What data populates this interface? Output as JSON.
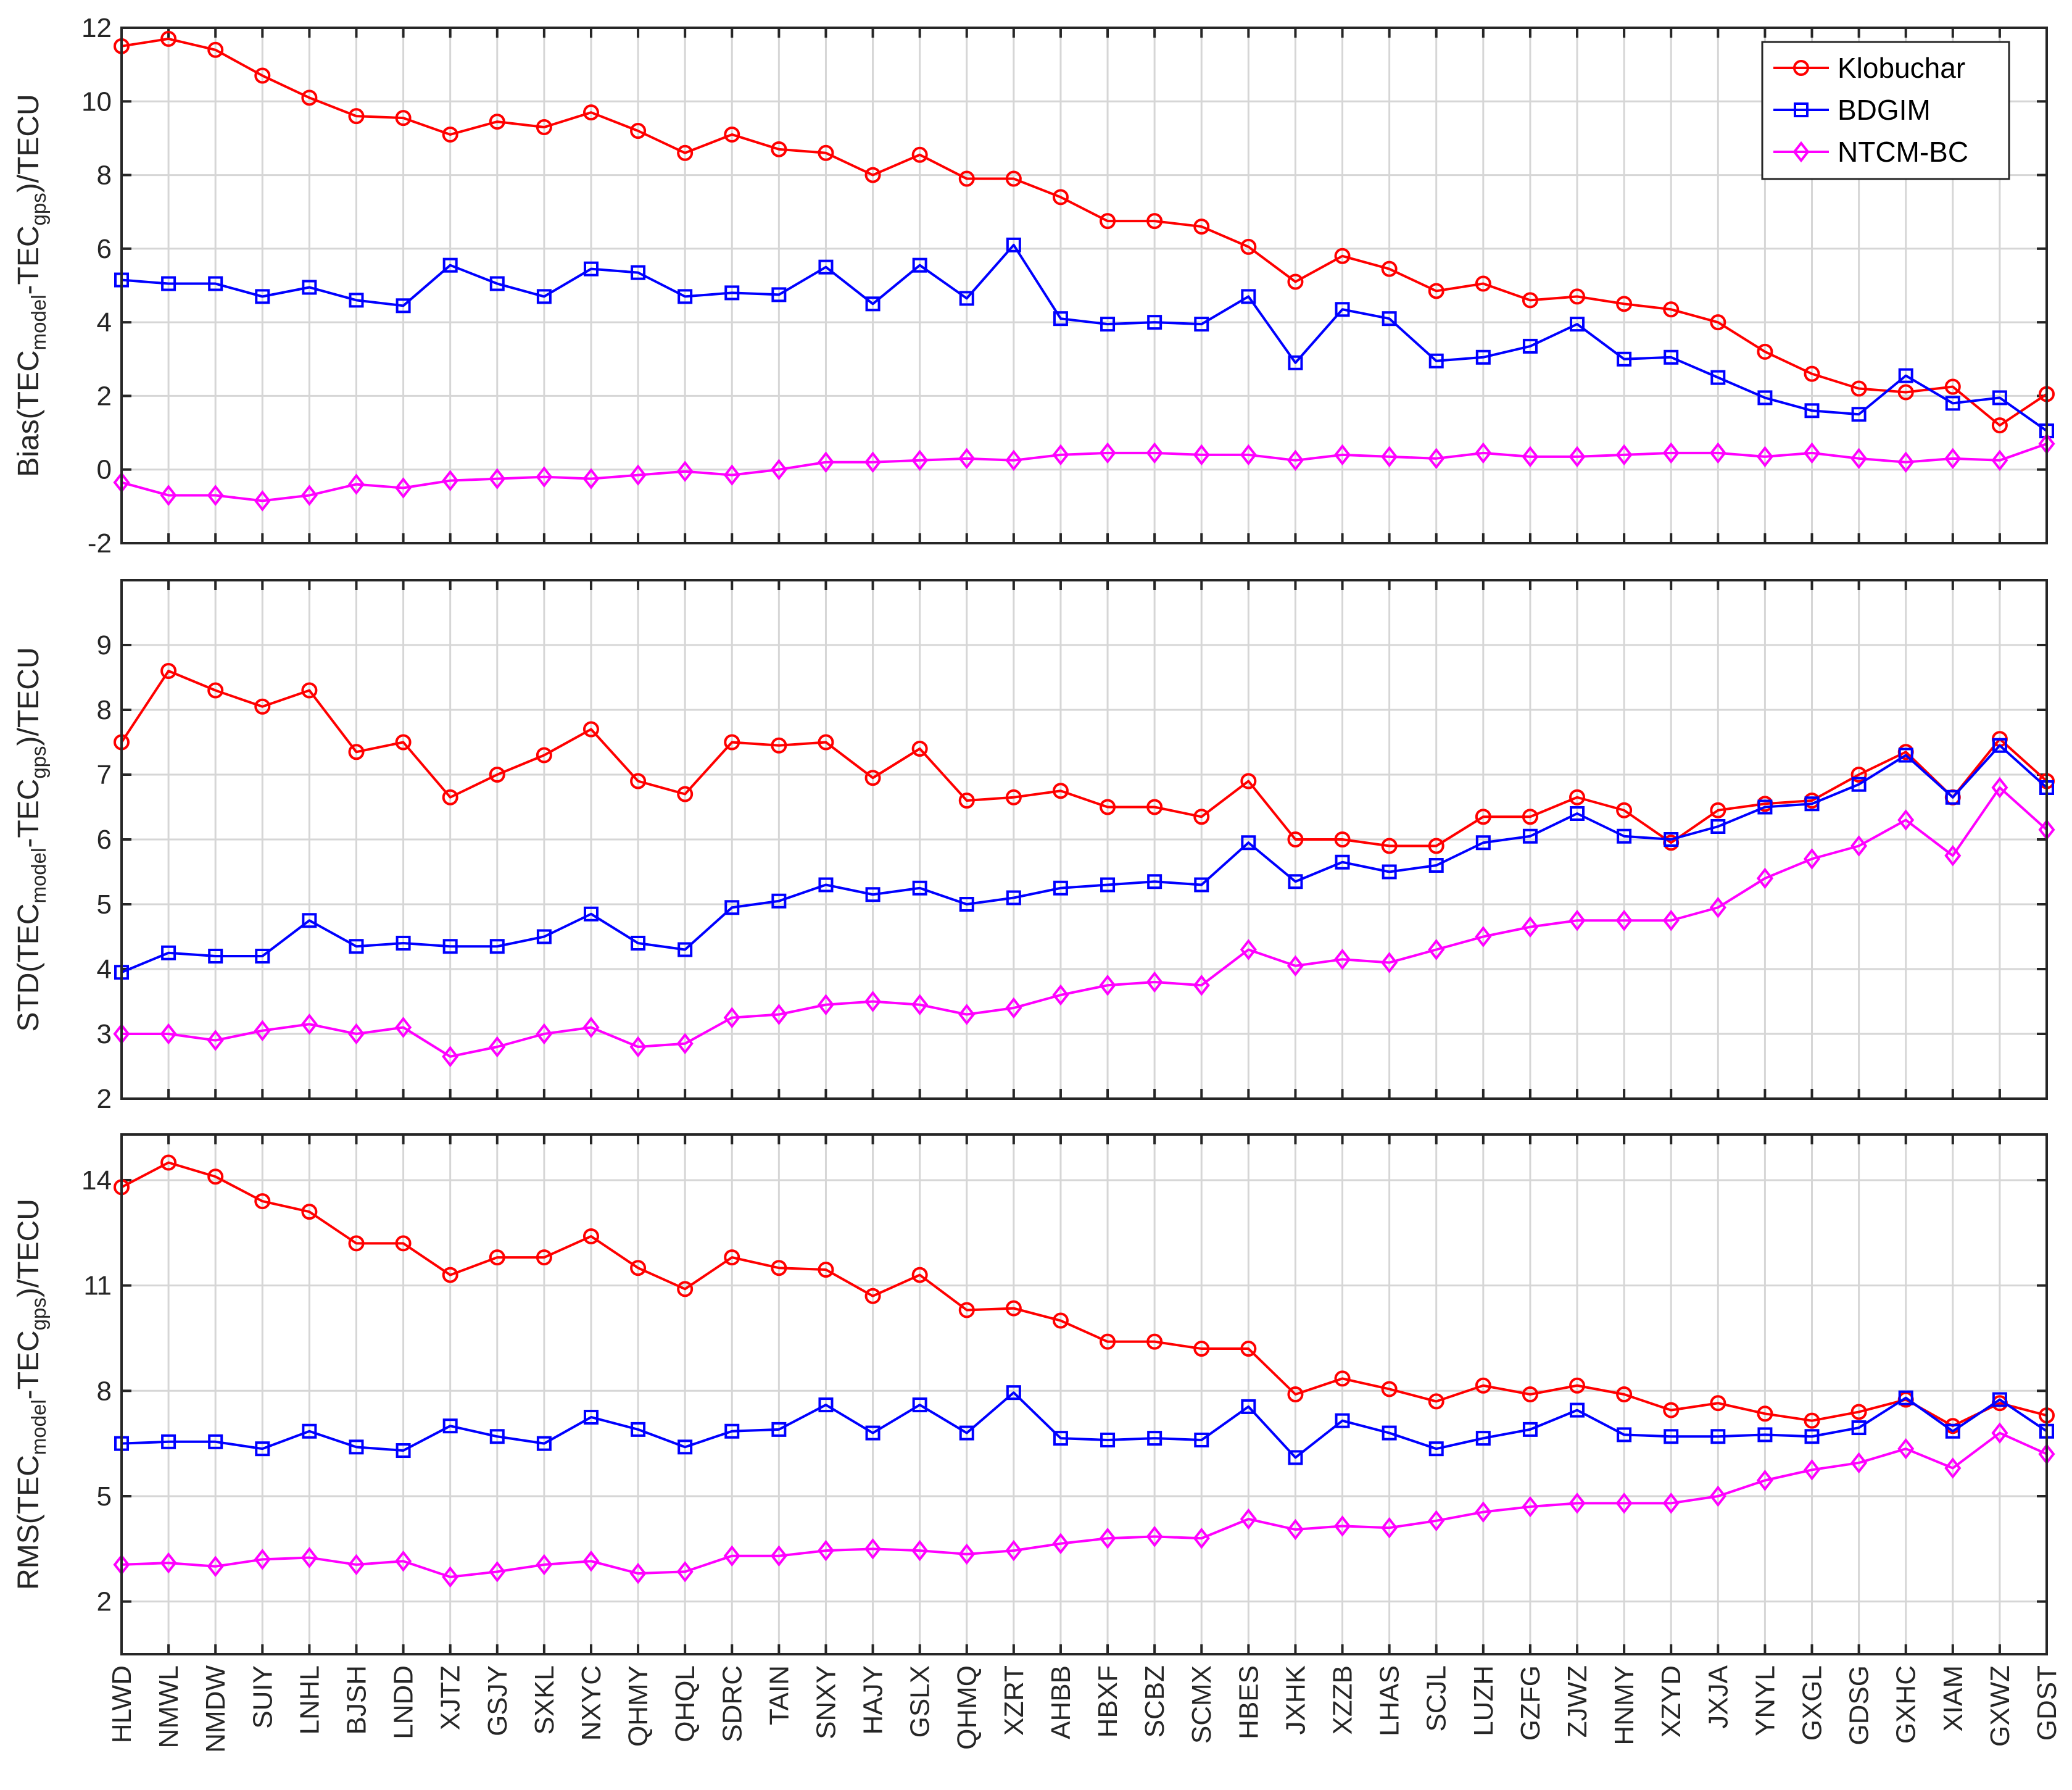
{
  "colors": {
    "Klobuchar": "#ff0000",
    "BDGIM": "#0000ff",
    "NTCM-BC": "#ff00ff",
    "grid": "#d6d6d6",
    "axis": "#262626"
  },
  "chart_data": {
    "type": "line",
    "categories": [
      "HLWD",
      "NMWL",
      "NMDW",
      "SUIY",
      "LNHL",
      "BJSH",
      "LNDD",
      "XJTZ",
      "GSJY",
      "SXKL",
      "NXYC",
      "QHMY",
      "QHQL",
      "SDRC",
      "TAIN",
      "SNXY",
      "HAJY",
      "GSLX",
      "QHMQ",
      "XZRT",
      "AHBB",
      "HBXF",
      "SCBZ",
      "SCMX",
      "HBES",
      "JXHK",
      "XZZB",
      "LHAS",
      "SCJL",
      "LUZH",
      "GZFG",
      "ZJWZ",
      "HNMY",
      "XZYD",
      "JXJA",
      "YNYL",
      "GXGL",
      "GDSG",
      "GXHC",
      "XIAM",
      "GXWZ",
      "GDST"
    ],
    "legend": {
      "position": "top-right",
      "entries": [
        {
          "name": "Klobuchar",
          "marker": "circle"
        },
        {
          "name": "BDGIM",
          "marker": "square"
        },
        {
          "name": "NTCM-BC",
          "marker": "diamond"
        }
      ]
    },
    "panels": [
      {
        "ylabel_prefix": "Bias(TEC",
        "ylabel_sub1": "model",
        "ylabel_mid": "-TEC",
        "ylabel_sub2": "gps",
        "ylabel_suffix": ")/TECU",
        "ylim": [
          -2,
          12
        ],
        "yticks": [
          -2,
          0,
          2,
          4,
          6,
          8,
          10,
          12
        ],
        "ytick_labels": [
          "-2",
          "0",
          "2",
          "4",
          "6",
          "8",
          "10",
          "12"
        ],
        "series": [
          {
            "name": "Klobuchar",
            "values": [
              11.5,
              11.7,
              11.4,
              10.7,
              10.1,
              9.6,
              9.55,
              9.1,
              9.45,
              9.3,
              9.7,
              9.2,
              8.6,
              9.1,
              8.7,
              8.6,
              8.0,
              8.55,
              7.9,
              7.9,
              7.4,
              6.75,
              6.75,
              6.6,
              6.05,
              5.1,
              5.8,
              5.45,
              4.85,
              5.05,
              4.6,
              4.7,
              4.5,
              4.35,
              4.0,
              3.2,
              2.6,
              2.2,
              2.1,
              2.25,
              1.2,
              2.05
            ]
          },
          {
            "name": "BDGIM",
            "values": [
              5.15,
              5.05,
              5.05,
              4.7,
              4.95,
              4.6,
              4.45,
              5.55,
              5.05,
              4.7,
              5.45,
              5.35,
              4.7,
              4.8,
              4.75,
              5.5,
              4.5,
              5.55,
              4.65,
              6.1,
              4.1,
              3.95,
              4.0,
              3.95,
              4.7,
              2.9,
              4.35,
              4.1,
              2.95,
              3.05,
              3.35,
              3.95,
              3.0,
              3.05,
              2.5,
              1.95,
              1.6,
              1.5,
              2.55,
              1.8,
              1.95,
              1.05
            ]
          },
          {
            "name": "NTCM-BC",
            "values": [
              -0.35,
              -0.7,
              -0.7,
              -0.85,
              -0.7,
              -0.4,
              -0.5,
              -0.3,
              -0.25,
              -0.2,
              -0.25,
              -0.15,
              -0.05,
              -0.15,
              0.0,
              0.2,
              0.2,
              0.25,
              0.3,
              0.25,
              0.4,
              0.45,
              0.45,
              0.4,
              0.4,
              0.25,
              0.4,
              0.35,
              0.3,
              0.45,
              0.35,
              0.35,
              0.4,
              0.45,
              0.45,
              0.35,
              0.45,
              0.3,
              0.2,
              0.3,
              0.25,
              0.7
            ]
          }
        ]
      },
      {
        "ylabel_prefix": "STD(TEC",
        "ylabel_sub1": "model",
        "ylabel_mid": "-TEC",
        "ylabel_sub2": "gps",
        "ylabel_suffix": ")/TECU",
        "ylim": [
          2,
          10
        ],
        "yticks": [
          2,
          3,
          4,
          5,
          6,
          7,
          8,
          9
        ],
        "ytick_labels": [
          "2",
          "3",
          "4",
          "5",
          "6",
          "7",
          "8",
          "9"
        ],
        "series": [
          {
            "name": "Klobuchar",
            "values": [
              7.5,
              8.6,
              8.3,
              8.05,
              8.3,
              7.35,
              7.5,
              6.65,
              7.0,
              7.3,
              7.7,
              6.9,
              6.7,
              7.5,
              7.45,
              7.5,
              6.95,
              7.4,
              6.6,
              6.65,
              6.75,
              6.5,
              6.5,
              6.35,
              6.9,
              6.0,
              6.0,
              5.9,
              5.9,
              6.35,
              6.35,
              6.65,
              6.45,
              5.95,
              6.45,
              6.55,
              6.6,
              7.0,
              7.35,
              6.65,
              7.55,
              6.9
            ]
          },
          {
            "name": "BDGIM",
            "values": [
              3.95,
              4.25,
              4.2,
              4.2,
              4.75,
              4.35,
              4.4,
              4.35,
              4.35,
              4.5,
              4.85,
              4.4,
              4.3,
              4.95,
              5.05,
              5.3,
              5.15,
              5.25,
              5.0,
              5.1,
              5.25,
              5.3,
              5.35,
              5.3,
              5.95,
              5.35,
              5.65,
              5.5,
              5.6,
              5.95,
              6.05,
              6.4,
              6.05,
              6.0,
              6.2,
              6.5,
              6.55,
              6.85,
              7.3,
              6.65,
              7.45,
              6.8
            ]
          },
          {
            "name": "NTCM-BC",
            "values": [
              3.0,
              3.0,
              2.9,
              3.05,
              3.15,
              3.0,
              3.1,
              2.65,
              2.8,
              3.0,
              3.1,
              2.8,
              2.85,
              3.25,
              3.3,
              3.45,
              3.5,
              3.45,
              3.3,
              3.4,
              3.6,
              3.75,
              3.8,
              3.75,
              4.3,
              4.05,
              4.15,
              4.1,
              4.3,
              4.5,
              4.65,
              4.75,
              4.75,
              4.75,
              4.95,
              5.4,
              5.7,
              5.9,
              6.3,
              5.75,
              6.8,
              6.15
            ]
          }
        ]
      },
      {
        "ylabel_prefix": "RMS(TEC",
        "ylabel_sub1": "model",
        "ylabel_mid": "-TEC",
        "ylabel_sub2": "gps",
        "ylabel_suffix": ")/TECU",
        "ylim": [
          0.5,
          15.3
        ],
        "yticks": [
          2,
          5,
          8,
          11,
          14
        ],
        "ytick_labels": [
          "2",
          "5",
          "8",
          "11",
          "14"
        ],
        "series": [
          {
            "name": "Klobuchar",
            "values": [
              13.8,
              14.5,
              14.1,
              13.4,
              13.1,
              12.2,
              12.2,
              11.3,
              11.8,
              11.8,
              12.4,
              11.5,
              10.9,
              11.8,
              11.5,
              11.45,
              10.7,
              11.3,
              10.3,
              10.35,
              10.0,
              9.4,
              9.4,
              9.2,
              9.2,
              7.9,
              8.35,
              8.05,
              7.7,
              8.15,
              7.9,
              8.15,
              7.9,
              7.45,
              7.65,
              7.35,
              7.15,
              7.4,
              7.75,
              7.0,
              7.65,
              7.3
            ]
          },
          {
            "name": "BDGIM",
            "values": [
              6.5,
              6.55,
              6.55,
              6.35,
              6.85,
              6.4,
              6.3,
              7.0,
              6.7,
              6.5,
              7.25,
              6.9,
              6.4,
              6.85,
              6.9,
              7.6,
              6.8,
              7.6,
              6.8,
              7.95,
              6.65,
              6.6,
              6.65,
              6.6,
              7.55,
              6.1,
              7.15,
              6.8,
              6.35,
              6.65,
              6.9,
              7.45,
              6.75,
              6.7,
              6.7,
              6.75,
              6.7,
              6.95,
              7.8,
              6.85,
              7.75,
              6.85
            ]
          },
          {
            "name": "NTCM-BC",
            "values": [
              3.05,
              3.1,
              3.0,
              3.2,
              3.25,
              3.05,
              3.15,
              2.7,
              2.85,
              3.05,
              3.15,
              2.8,
              2.85,
              3.3,
              3.3,
              3.45,
              3.5,
              3.45,
              3.35,
              3.45,
              3.65,
              3.8,
              3.85,
              3.8,
              4.35,
              4.05,
              4.15,
              4.1,
              4.3,
              4.55,
              4.7,
              4.8,
              4.8,
              4.8,
              5.0,
              5.45,
              5.75,
              5.95,
              6.35,
              5.8,
              6.8,
              6.2
            ]
          }
        ]
      }
    ]
  }
}
